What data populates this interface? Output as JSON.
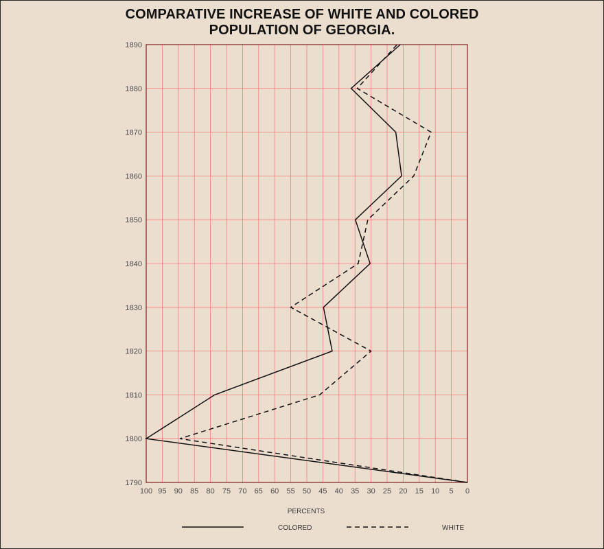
{
  "chart_data": {
    "type": "line",
    "title_line1": "COMPARATIVE INCREASE OF WHITE AND COLORED",
    "title_line2": "POPULATION OF GEORGIA.",
    "xlabel": "PERCENTS",
    "ylabel": "",
    "x_ticks": [
      "100",
      "95",
      "90",
      "85",
      "80",
      "75",
      "70",
      "65",
      "60",
      "55",
      "50",
      "45",
      "40",
      "35",
      "30",
      "25",
      "20",
      "15",
      "10",
      "5",
      "0"
    ],
    "y_ticks": [
      "1890",
      "1880",
      "1870",
      "1860",
      "1850",
      "1840",
      "1830",
      "1820",
      "1810",
      "1800",
      "1790"
    ],
    "xlim": [
      100,
      0
    ],
    "ylim": [
      1790,
      1890
    ],
    "x_reversed": true,
    "grid": true,
    "legend_position": "bottom",
    "years": [
      1790,
      1800,
      1810,
      1820,
      1830,
      1840,
      1850,
      1860,
      1870,
      1880,
      1890
    ],
    "series": [
      {
        "name": "COLORED",
        "style": "solid",
        "color": "#111111",
        "values": [
          0,
          100,
          78.7,
          42.1,
          44.8,
          30.3,
          34.9,
          20.5,
          22.3,
          36.2,
          20.9
        ]
      },
      {
        "name": "WHITE",
        "style": "dashed",
        "color": "#111111",
        "values": [
          0,
          89.5,
          46,
          30,
          55,
          34,
          31,
          16.7,
          11.3,
          34.3,
          21.9
        ]
      }
    ],
    "colors": {
      "background": "#ecdecf",
      "grid": "#f26b6b",
      "axis_border": "#7a2020",
      "line": "#111111",
      "tick_text": "#4a4a4a"
    }
  }
}
